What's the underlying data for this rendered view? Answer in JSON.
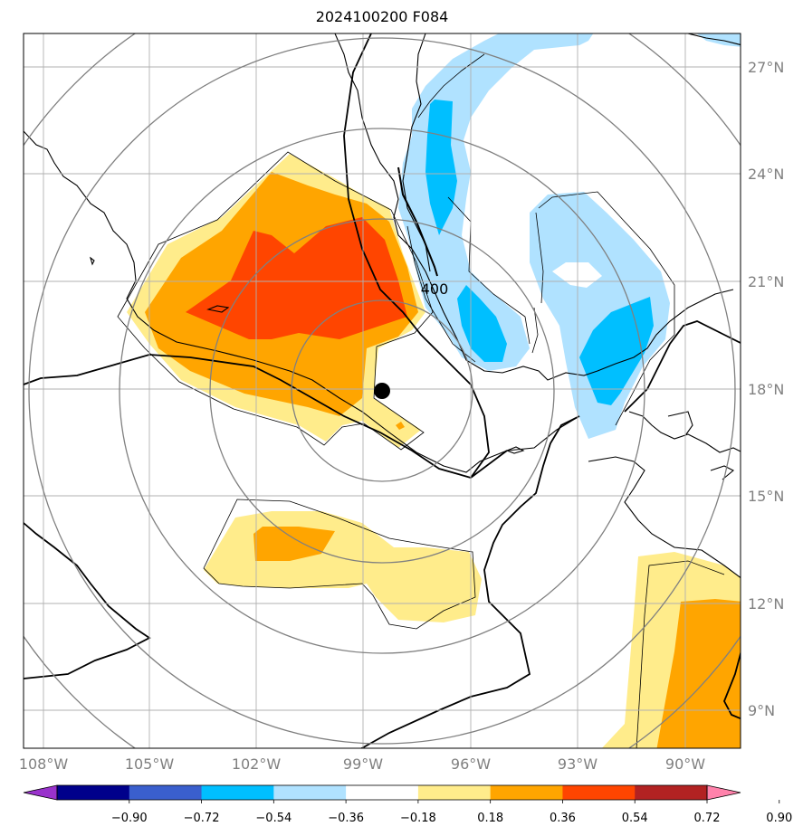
{
  "title": "2024100200 F084",
  "map": {
    "lon_labels": [
      "108°W",
      "105°W",
      "102°W",
      "99°W",
      "96°W",
      "93°W",
      "90°W"
    ],
    "lat_labels": [
      "27°N",
      "24°N",
      "21°N",
      "18°N",
      "15°N",
      "12°N",
      "9°N"
    ],
    "contour_label": "400",
    "center_marker": {
      "lon": -98.5,
      "lat": 18.0
    }
  },
  "colorbar": {
    "ticks": [
      "−0.90",
      "−0.72",
      "−0.54",
      "−0.36",
      "−0.18",
      "0.18",
      "0.36",
      "0.54",
      "0.72",
      "0.90"
    ],
    "colors": [
      "#9932cc",
      "#00008b",
      "#3a5fcd",
      "#00bfff",
      "#b0e2ff",
      "#ffffff",
      "#ffec8b",
      "#ffa500",
      "#ff4500",
      "#b22222",
      "#ff82ab"
    ]
  }
}
